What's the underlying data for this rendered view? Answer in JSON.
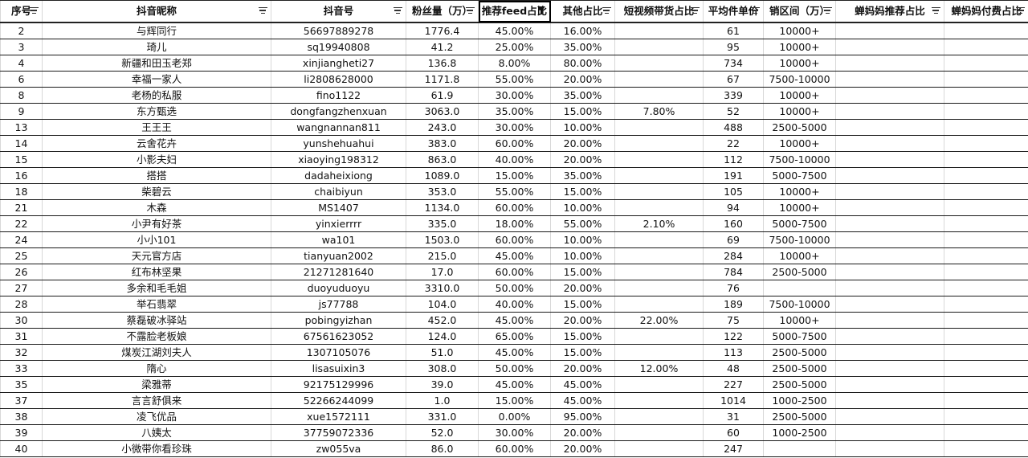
{
  "columns": [
    {
      "key": "seq",
      "label": "序号"
    },
    {
      "key": "nickname",
      "label": "抖音昵称"
    },
    {
      "key": "account",
      "label": "抖音号"
    },
    {
      "key": "fans",
      "label": "粉丝量（万）"
    },
    {
      "key": "feed",
      "label": "推荐feed占比"
    },
    {
      "key": "other",
      "label": "其他占比"
    },
    {
      "key": "short_video",
      "label": "短视频带货占比"
    },
    {
      "key": "avg_price",
      "label": "平均件单价"
    },
    {
      "key": "sales_range",
      "label": "销区间（万）"
    },
    {
      "key": "mama_rec",
      "label": "蝉妈妈推荐占比"
    },
    {
      "key": "mama_paid",
      "label": "蝉妈妈付费占比"
    }
  ],
  "active_filter_column": "推荐feed占比",
  "rows": [
    [
      "2",
      "与辉同行",
      "56697889278",
      "1776.4",
      "45.00%",
      "16.00%",
      "",
      "61",
      "10000+",
      "",
      ""
    ],
    [
      "3",
      "琦儿",
      "sq19940808",
      "41.2",
      "25.00%",
      "35.00%",
      "",
      "95",
      "10000+",
      "",
      ""
    ],
    [
      "4",
      "新疆和田玉老郑",
      "xinjiangheti27",
      "136.8",
      "8.00%",
      "80.00%",
      "",
      "734",
      "10000+",
      "",
      ""
    ],
    [
      "6",
      "幸福一家人",
      "li2808628000",
      "1171.8",
      "55.00%",
      "20.00%",
      "",
      "67",
      "7500-10000",
      "",
      ""
    ],
    [
      "8",
      "老杨的私服",
      "fino1122",
      "61.9",
      "30.00%",
      "35.00%",
      "",
      "339",
      "10000+",
      "",
      ""
    ],
    [
      "9",
      "东方甄选",
      "dongfangzhenxuan",
      "3063.0",
      "35.00%",
      "15.00%",
      "7.80%",
      "52",
      "10000+",
      "",
      ""
    ],
    [
      "13",
      "王王王",
      "wangnannan811",
      "243.0",
      "30.00%",
      "10.00%",
      "",
      "488",
      "2500-5000",
      "",
      ""
    ],
    [
      "14",
      "云舍花卉",
      "yunshehuahui",
      "383.0",
      "60.00%",
      "20.00%",
      "",
      "22",
      "10000+",
      "",
      ""
    ],
    [
      "15",
      "小影夫妇",
      "xiaoying198312",
      "863.0",
      "40.00%",
      "20.00%",
      "",
      "112",
      "7500-10000",
      "",
      ""
    ],
    [
      "16",
      "搭搭",
      "dadaheixiong",
      "1089.0",
      "15.00%",
      "35.00%",
      "",
      "191",
      "5000-7500",
      "",
      ""
    ],
    [
      "18",
      "柴碧云",
      "chaibiyun",
      "353.0",
      "55.00%",
      "15.00%",
      "",
      "105",
      "10000+",
      "",
      ""
    ],
    [
      "21",
      "木森",
      "MS1407",
      "1134.0",
      "60.00%",
      "10.00%",
      "",
      "94",
      "10000+",
      "",
      ""
    ],
    [
      "22",
      "小尹有好茶",
      "yinxierrrr",
      "335.0",
      "18.00%",
      "55.00%",
      "2.10%",
      "160",
      "5000-7500",
      "",
      ""
    ],
    [
      "24",
      "小小101",
      "wa101",
      "1503.0",
      "60.00%",
      "10.00%",
      "",
      "69",
      "7500-10000",
      "",
      ""
    ],
    [
      "25",
      "天元官方店",
      "tianyuan2002",
      "215.0",
      "45.00%",
      "10.00%",
      "",
      "284",
      "10000+",
      "",
      ""
    ],
    [
      "26",
      "红布林坚果",
      "21271281640",
      "17.0",
      "60.00%",
      "15.00%",
      "",
      "784",
      "2500-5000",
      "",
      ""
    ],
    [
      "27",
      "多余和毛毛姐",
      "duoyuduoyu",
      "3310.0",
      "50.00%",
      "20.00%",
      "",
      "76",
      "",
      "",
      ""
    ],
    [
      "28",
      "举石翡翠",
      "js77788",
      "104.0",
      "40.00%",
      "15.00%",
      "",
      "189",
      "7500-10000",
      "",
      ""
    ],
    [
      "30",
      "蔡磊破冰驿站",
      "pobingyizhan",
      "452.0",
      "45.00%",
      "20.00%",
      "22.00%",
      "75",
      "10000+",
      "",
      ""
    ],
    [
      "31",
      "不露脸老板娘",
      "67561623052",
      "124.0",
      "65.00%",
      "15.00%",
      "",
      "122",
      "5000-7500",
      "",
      ""
    ],
    [
      "32",
      "煤炭江湖刘夫人",
      "1307105076",
      "51.0",
      "45.00%",
      "15.00%",
      "",
      "113",
      "2500-5000",
      "",
      ""
    ],
    [
      "33",
      "隋心",
      "lisasuixin3",
      "308.0",
      "50.00%",
      "20.00%",
      "12.00%",
      "48",
      "2500-5000",
      "",
      ""
    ],
    [
      "35",
      "梁雅蒂",
      "92175129996",
      "39.0",
      "45.00%",
      "45.00%",
      "",
      "227",
      "2500-5000",
      "",
      ""
    ],
    [
      "37",
      "言言舒俱来",
      "52266244099",
      "1.0",
      "15.00%",
      "45.00%",
      "",
      "1014",
      "1000-2500",
      "",
      ""
    ],
    [
      "38",
      "凌飞优品",
      "xue1572111",
      "331.0",
      "0.00%",
      "95.00%",
      "",
      "31",
      "2500-5000",
      "",
      ""
    ],
    [
      "39",
      "八姨太",
      "37759072336",
      "52.0",
      "30.00%",
      "20.00%",
      "",
      "60",
      "1000-2500",
      "",
      ""
    ],
    [
      "40",
      "小微带你看珍珠",
      "zw055va",
      "86.0",
      "60.00%",
      "20.00%",
      "",
      "247",
      "",
      "",
      ""
    ]
  ]
}
